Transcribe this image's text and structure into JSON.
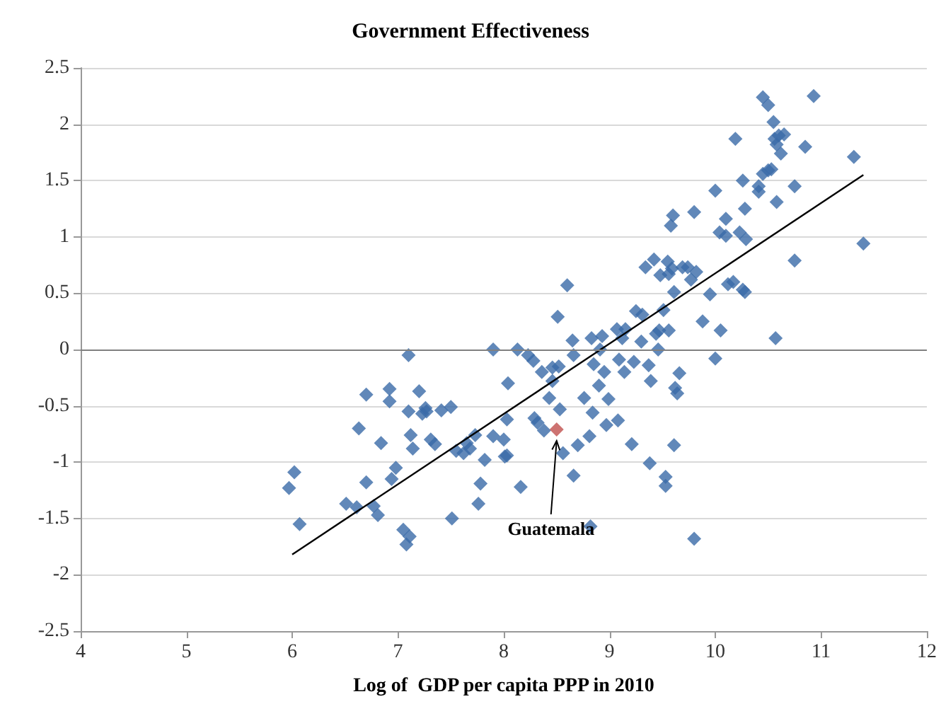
{
  "chart_data": {
    "type": "scatter",
    "title": "Government Effectiveness",
    "xlabel": "Log of  GDP per capita PPP in 2010",
    "xlim": [
      4,
      12
    ],
    "xticks": [
      4,
      5,
      6,
      7,
      8,
      9,
      10,
      11,
      12
    ],
    "ylim": [
      -2.5,
      2.5
    ],
    "yticks": [
      -2.5,
      -2,
      -1.5,
      -1,
      -0.5,
      0,
      0.5,
      1,
      1.5,
      2,
      2.5
    ],
    "grid": "y",
    "marker": "diamond",
    "ref_lines": [
      {
        "axis": "y",
        "value": 0,
        "color": "#808080"
      }
    ],
    "annotations": [
      {
        "text": "Guatemala",
        "x": 8.5,
        "y": -0.71
      }
    ],
    "series": [
      {
        "color": "#3a6aa8",
        "x": [
          5.97,
          6.02,
          6.07,
          6.51,
          6.61,
          6.63,
          6.7,
          6.7,
          6.77,
          6.81,
          6.84,
          6.92,
          6.92,
          6.94,
          6.98,
          7.05,
          7.08,
          7.1,
          7.11,
          7.1,
          7.12,
          7.14,
          7.2,
          7.23,
          7.26,
          7.27,
          7.31,
          7.35,
          7.41,
          7.5,
          7.51,
          7.55,
          7.62,
          7.65,
          7.68,
          7.73,
          7.76,
          7.78,
          7.82,
          7.9,
          7.9,
          8.0,
          8.01,
          8.03,
          8.04,
          8.03,
          8.13,
          8.16,
          8.23,
          8.28,
          8.29,
          8.32,
          8.36,
          8.38,
          8.43,
          8.46,
          8.46,
          8.52,
          8.51,
          8.53,
          8.56,
          8.6,
          8.65,
          8.66,
          8.66,
          8.7,
          8.76,
          8.81,
          8.83,
          8.84,
          8.85,
          8.82,
          8.9,
          8.91,
          8.93,
          8.95,
          8.97,
          8.99,
          9.07,
          9.08,
          9.09,
          9.12,
          9.14,
          9.15,
          9.21,
          9.23,
          9.25,
          9.3,
          9.31,
          9.34,
          9.37,
          9.38,
          9.39,
          9.42,
          9.44,
          9.46,
          9.47,
          9.48,
          9.51,
          9.53,
          9.53,
          9.55,
          9.56,
          9.56,
          9.58,
          9.59,
          9.6,
          9.61,
          9.61,
          9.62,
          9.64,
          9.66,
          9.69,
          9.74,
          9.77,
          9.8,
          9.8,
          9.82,
          9.88,
          9.95,
          10.0,
          10.0,
          10.04,
          10.05,
          10.1,
          10.1,
          10.12,
          10.17,
          10.19,
          10.23,
          10.26,
          10.26,
          10.28,
          10.28,
          10.29,
          10.41,
          10.41,
          10.45,
          10.45,
          10.5,
          10.5,
          10.53,
          10.55,
          10.56,
          10.57,
          10.58,
          10.58,
          10.6,
          10.62,
          10.65,
          10.75,
          10.75,
          10.85,
          10.93,
          11.31,
          11.4
        ],
        "values": [
          -1.23,
          -1.09,
          -1.55,
          -1.37,
          -1.4,
          -0.7,
          -1.18,
          -0.4,
          -1.39,
          -1.47,
          -0.83,
          -0.35,
          -0.46,
          -1.15,
          -1.05,
          -1.6,
          -1.73,
          -0.05,
          -1.66,
          -0.55,
          -0.76,
          -0.88,
          -0.37,
          -0.57,
          -0.52,
          -0.55,
          -0.8,
          -0.84,
          -0.54,
          -0.51,
          -1.5,
          -0.9,
          -0.92,
          -0.83,
          -0.88,
          -0.76,
          -1.37,
          -1.19,
          -0.98,
          0.0,
          -0.77,
          -0.8,
          -0.95,
          -0.62,
          -0.3,
          -0.94,
          0.0,
          -1.22,
          -0.05,
          -0.1,
          -0.61,
          -0.65,
          -0.2,
          -0.72,
          -0.43,
          -0.16,
          -0.28,
          -0.15,
          0.29,
          -0.53,
          -0.92,
          0.57,
          0.08,
          -0.05,
          -1.12,
          -0.85,
          -0.43,
          -0.77,
          0.1,
          -0.56,
          -0.13,
          -1.57,
          -0.32,
          0.0,
          0.12,
          -0.2,
          -0.67,
          -0.44,
          0.18,
          -0.63,
          -0.09,
          0.1,
          -0.2,
          0.18,
          -0.84,
          -0.11,
          0.34,
          0.07,
          0.31,
          0.73,
          -0.14,
          -1.01,
          -0.28,
          0.8,
          0.14,
          0.0,
          0.17,
          0.66,
          0.35,
          -1.13,
          -1.21,
          0.78,
          0.17,
          0.67,
          1.1,
          0.72,
          1.19,
          -0.85,
          0.51,
          -0.34,
          -0.39,
          -0.21,
          0.73,
          0.73,
          0.62,
          1.22,
          -1.68,
          0.69,
          0.25,
          0.49,
          1.41,
          -0.08,
          1.04,
          0.17,
          1.16,
          1.01,
          0.58,
          0.6,
          1.87,
          1.04,
          0.53,
          1.5,
          1.25,
          0.51,
          0.98,
          1.4,
          1.45,
          2.24,
          1.56,
          2.17,
          1.59,
          1.6,
          2.02,
          1.87,
          0.1,
          1.31,
          1.82,
          1.9,
          1.74,
          1.91,
          0.79,
          1.45,
          1.8,
          2.25,
          1.71,
          0.94
        ]
      },
      {
        "color": "#c0504d",
        "x": [
          8.5
        ],
        "values": [
          -0.71
        ]
      },
      {
        "type": "line",
        "color": "#000000",
        "marker": "none",
        "x": [
          6.0,
          11.4
        ],
        "values": [
          -1.82,
          1.55
        ]
      }
    ]
  }
}
